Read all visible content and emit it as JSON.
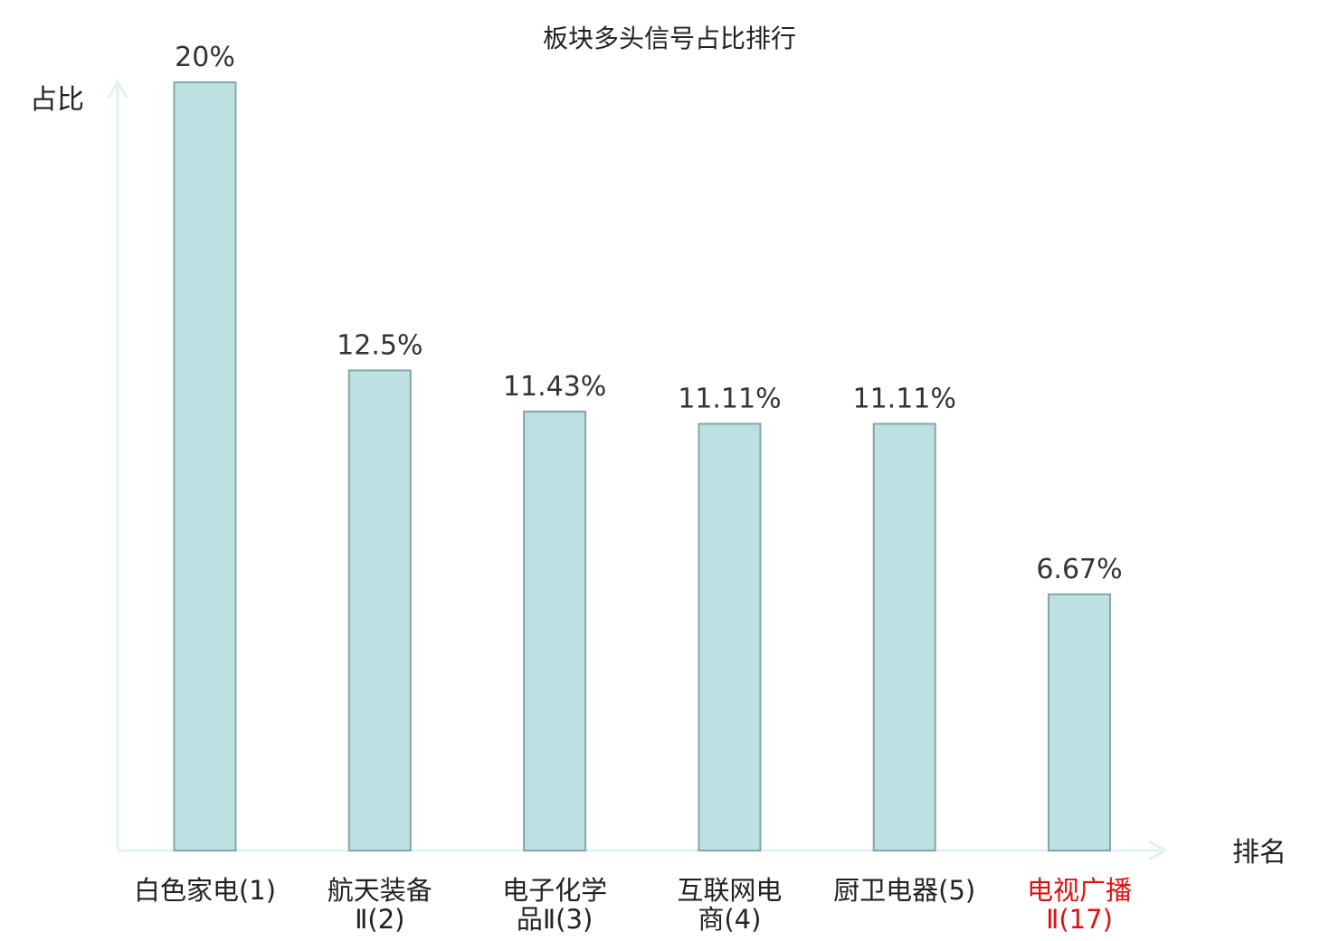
{
  "chart_data": {
    "type": "bar",
    "title": "板块多头信号占比排行",
    "xlabel": "排名",
    "ylabel": "占比",
    "categories": [
      [
        "白色家电(1)"
      ],
      [
        "航天装备",
        "Ⅱ(2)"
      ],
      [
        "电子化学",
        "品Ⅱ(3)"
      ],
      [
        "互联网电",
        "商(4)"
      ],
      [
        "厨卫电器(5)"
      ],
      [
        "电视广播",
        "Ⅱ(17)"
      ]
    ],
    "values": [
      20,
      12.5,
      11.43,
      11.11,
      11.11,
      6.67
    ],
    "value_labels": [
      "20%",
      "12.5%",
      "11.43%",
      "11.11%",
      "11.11%",
      "6.67%"
    ],
    "highlighted_category_index": 5,
    "ylim": [
      0,
      20
    ],
    "grid": false,
    "colors": {
      "bar_fill": "#bde0e3",
      "bar_stroke": "#86a5a9",
      "axis": "#dff3f1",
      "text": "#222222",
      "value_label": "#333333",
      "highlight": "#e01010"
    }
  }
}
